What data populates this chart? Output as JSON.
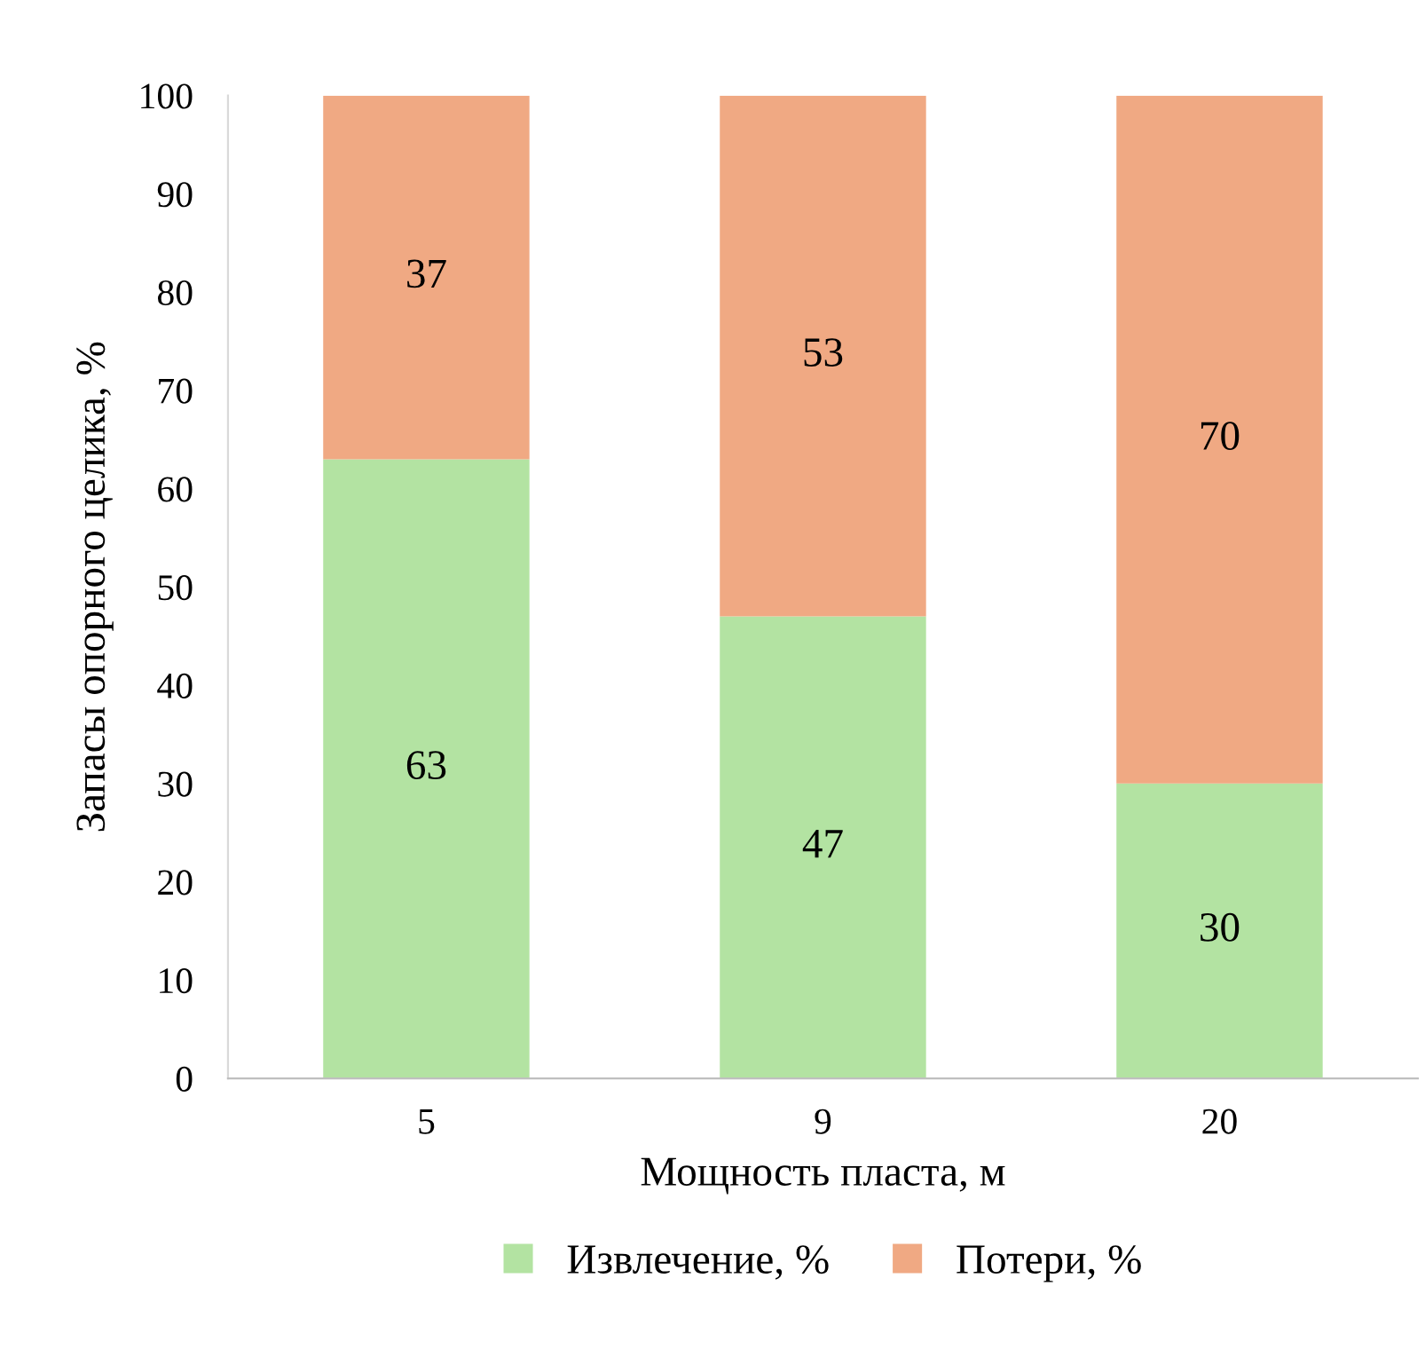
{
  "chart_data": {
    "type": "bar",
    "stacked": true,
    "xlabel": "Мощность пласта, м",
    "ylabel": "Запасы опорного целика, %",
    "categories": [
      "5",
      "9",
      "20"
    ],
    "series": [
      {
        "name": "Извлечение, %",
        "color": "#b3e3a2",
        "values": [
          63,
          47,
          30
        ]
      },
      {
        "name": "Потери, %",
        "color": "#f0a983",
        "values": [
          37,
          53,
          70
        ]
      }
    ],
    "ylim": [
      0,
      100
    ],
    "yticks": [
      0,
      10,
      20,
      30,
      40,
      50,
      60,
      70,
      80,
      90,
      100
    ],
    "grid": false,
    "legend": "bottom",
    "data_labels": true
  }
}
